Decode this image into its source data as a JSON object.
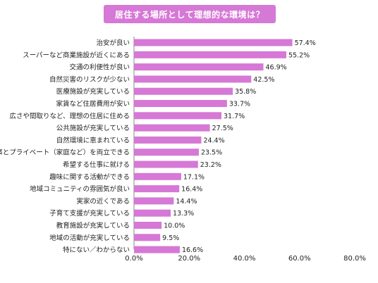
{
  "chart_data": {
    "type": "bar",
    "orientation": "horizontal",
    "title": "居住する場所として理想的な環境は？",
    "categories": [
      "治安が良い",
      "スーパーなど商業施設が近くにある",
      "交通の利便性が良い",
      "自然災害のリスクが少ない",
      "医療施設が充実している",
      "家賃など住居費用が安い",
      "広さや間取りなど、理想の住居に住める",
      "公共施設が充実している",
      "自然環境に恵まれている",
      "仕事とプライベート（家庭など）を両立できる",
      "希望する仕事に就ける",
      "趣味に関する活動ができる",
      "地域コミュニティの雰囲気が良い",
      "実家の近くである",
      "子育て支援が充実している",
      "教育施設が充実している",
      "地域の活動が充実している",
      "特にない／わからない"
    ],
    "values": [
      57.4,
      55.2,
      46.9,
      42.5,
      35.8,
      33.7,
      31.7,
      27.5,
      24.4,
      23.5,
      23.2,
      17.1,
      16.4,
      14.4,
      13.3,
      10.0,
      9.5,
      16.6
    ],
    "value_labels": [
      "57.4%",
      "55.2%",
      "46.9%",
      "42.5%",
      "35.8%",
      "33.7%",
      "31.7%",
      "27.5%",
      "24.4%",
      "23.5%",
      "23.2%",
      "17.1%",
      "16.4%",
      "14.4%",
      "13.3%",
      "10.0%",
      "9.5%",
      "16.6%"
    ],
    "x_ticks": [
      0,
      20,
      40,
      60,
      80
    ],
    "x_tick_labels": [
      "0.0%",
      "20.0%",
      "40.0%",
      "60.0%",
      "80.0%"
    ],
    "xlim": [
      0,
      80
    ],
    "grid": false,
    "bar_color": "#d678d6",
    "title_bg_color": "#d678d6"
  }
}
